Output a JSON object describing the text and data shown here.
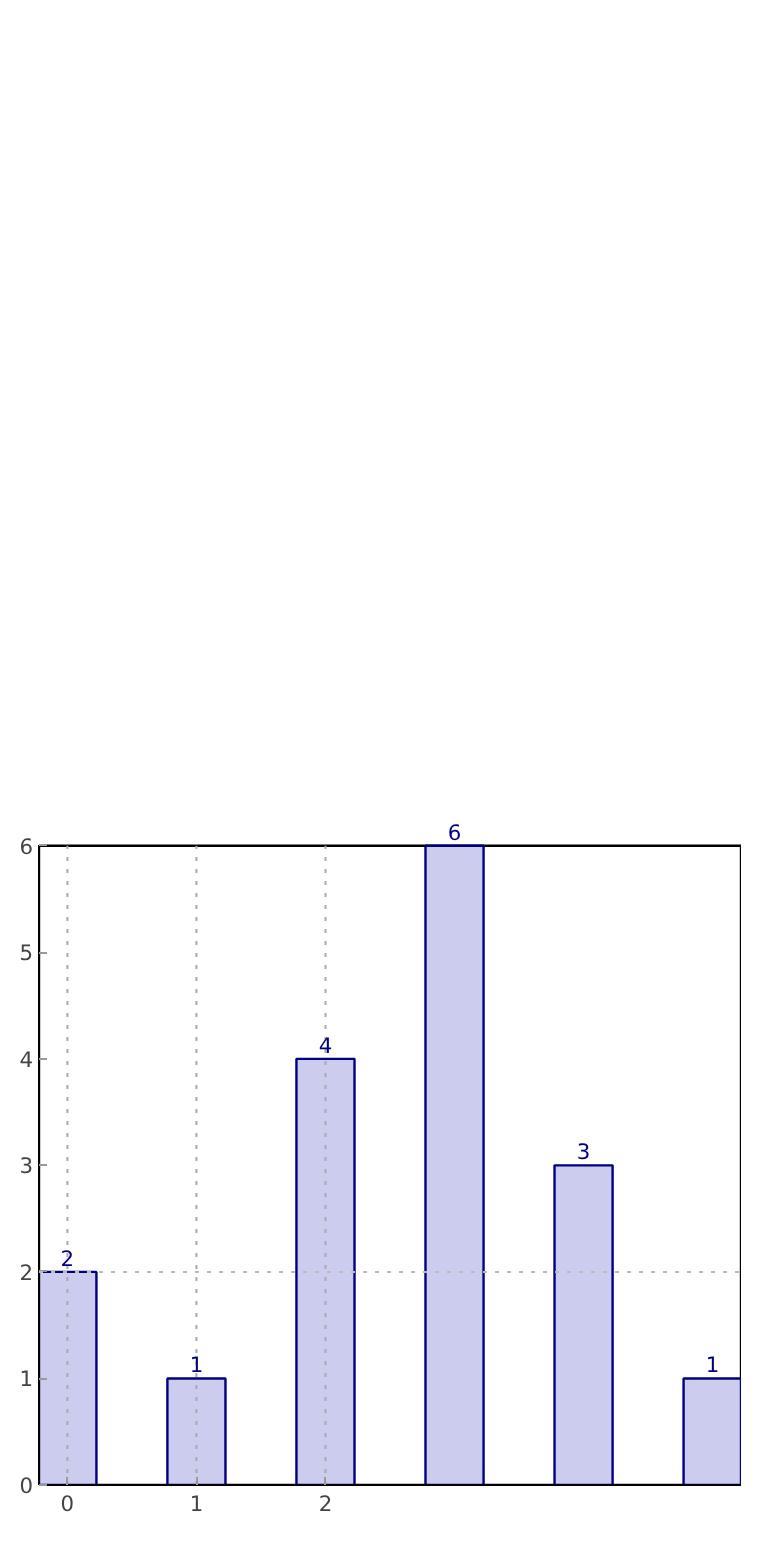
{
  "chart_data": {
    "type": "bar",
    "x": [
      0,
      1,
      2,
      3,
      4,
      5
    ],
    "values": [
      2,
      1,
      4,
      6,
      3,
      1
    ],
    "color": "#ccccee",
    "data_labels": true,
    "xlim": [
      -0.22,
      5.22
    ],
    "xticks": [
      0,
      1,
      2
    ],
    "ylim": [
      0,
      6
    ],
    "yticks": [
      0,
      1,
      2,
      3,
      4,
      5,
      6
    ],
    "grid": "x",
    "ref_lines": [
      {
        "axis": "y",
        "value": 2,
        "label": null,
        "color": "#bbbbbb",
        "line_style": "dotted"
      }
    ]
  }
}
